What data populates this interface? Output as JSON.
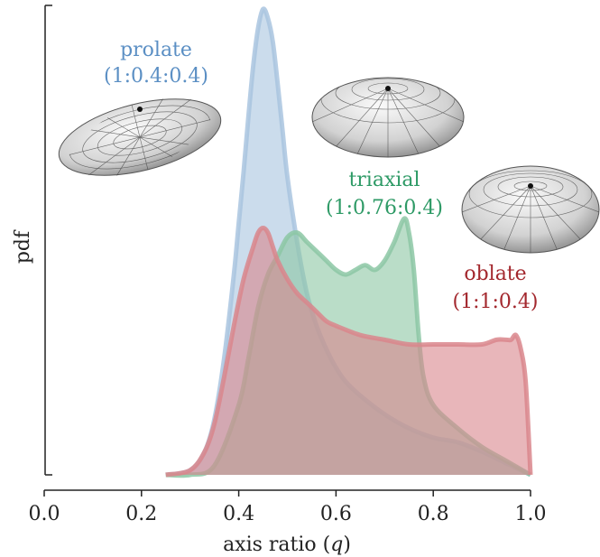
{
  "colors": {
    "prolate": "#5b8fc4",
    "triaxial": "#2e9a66",
    "oblate": "#a3282e",
    "prolate_fill": "#a9c4df",
    "triaxial_fill": "#8cc7a4",
    "oblate_fill": "#d9868c"
  },
  "icons": [
    "prolate-spheroid-icon",
    "triaxial-ellipsoid-icon",
    "oblate-spheroid-icon"
  ],
  "chart_data": {
    "type": "area",
    "xlabel": "axis ratio (q)",
    "xlabel_prefix": "axis ratio (",
    "xlabel_var": "q",
    "xlabel_suffix": ")",
    "ylabel": "pdf",
    "xlim": [
      0.0,
      1.0
    ],
    "ylim": [
      0,
      1.0
    ],
    "y_ticks_shown": false,
    "grid": false,
    "x_ticks": [
      "0.0",
      "0.2",
      "0.4",
      "0.6",
      "0.8",
      "1.0"
    ],
    "annotations": [
      {
        "key": "prolate",
        "line1": "prolate",
        "line2": "(1:0.4:0.4)"
      },
      {
        "key": "triaxial",
        "line1": "triaxial",
        "line2": "(1:0.76:0.4)"
      },
      {
        "key": "oblate",
        "line1": "oblate",
        "line2": "(1:1:0.4)"
      }
    ],
    "series": [
      {
        "key": "prolate",
        "x": [
          0.25,
          0.3,
          0.33,
          0.35,
          0.37,
          0.39,
          0.4,
          0.41,
          0.42,
          0.43,
          0.44,
          0.45,
          0.46,
          0.47,
          0.48,
          0.49,
          0.5,
          0.52,
          0.54,
          0.56,
          0.58,
          0.6,
          0.62,
          0.65,
          0.7,
          0.75,
          0.8,
          0.85,
          0.9,
          0.95,
          1.0
        ],
        "y": [
          0.0,
          0.01,
          0.05,
          0.12,
          0.25,
          0.43,
          0.54,
          0.65,
          0.77,
          0.88,
          0.96,
          1.0,
          0.98,
          0.93,
          0.84,
          0.74,
          0.64,
          0.5,
          0.39,
          0.32,
          0.27,
          0.23,
          0.2,
          0.17,
          0.13,
          0.1,
          0.08,
          0.07,
          0.05,
          0.025,
          0.0
        ]
      },
      {
        "key": "triaxial",
        "x": [
          0.25,
          0.3,
          0.35,
          0.4,
          0.42,
          0.44,
          0.46,
          0.48,
          0.5,
          0.52,
          0.54,
          0.56,
          0.58,
          0.6,
          0.62,
          0.64,
          0.66,
          0.68,
          0.7,
          0.72,
          0.74,
          0.75,
          0.76,
          0.77,
          0.78,
          0.8,
          0.85,
          0.9,
          0.95,
          1.0
        ],
        "y": [
          0.0,
          0.0,
          0.02,
          0.15,
          0.25,
          0.36,
          0.43,
          0.47,
          0.51,
          0.52,
          0.5,
          0.48,
          0.46,
          0.44,
          0.43,
          0.44,
          0.45,
          0.44,
          0.46,
          0.5,
          0.55,
          0.52,
          0.44,
          0.3,
          0.21,
          0.15,
          0.1,
          0.06,
          0.03,
          0.0
        ]
      },
      {
        "key": "oblate",
        "x": [
          0.25,
          0.3,
          0.33,
          0.35,
          0.37,
          0.39,
          0.41,
          0.43,
          0.44,
          0.45,
          0.46,
          0.47,
          0.48,
          0.5,
          0.52,
          0.54,
          0.56,
          0.58,
          0.6,
          0.65,
          0.7,
          0.75,
          0.8,
          0.85,
          0.9,
          0.93,
          0.95,
          0.96,
          0.97,
          0.98,
          0.99,
          1.0
        ],
        "y": [
          0.0,
          0.01,
          0.05,
          0.11,
          0.21,
          0.32,
          0.42,
          0.49,
          0.52,
          0.53,
          0.52,
          0.49,
          0.46,
          0.42,
          0.39,
          0.37,
          0.35,
          0.33,
          0.32,
          0.3,
          0.29,
          0.28,
          0.28,
          0.28,
          0.28,
          0.29,
          0.29,
          0.29,
          0.3,
          0.27,
          0.2,
          0.0
        ]
      }
    ]
  }
}
